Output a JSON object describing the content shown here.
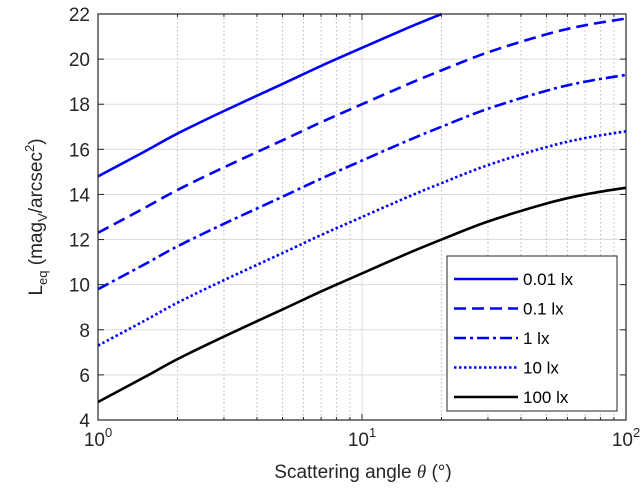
{
  "chart_data": {
    "type": "line",
    "xscale": "log",
    "xlim": [
      1,
      100
    ],
    "ylim": [
      4,
      22
    ],
    "grid": true,
    "legend_position": "bottom-right",
    "xlabel": {
      "prefix": "Scattering angle ",
      "symbol": "θ",
      "suffix": " (°)"
    },
    "ylabel": {
      "main": "L",
      "main_sub": "eq",
      "open": " (mag",
      "unit_sub": "V",
      "unit": "/arcsec",
      "unit_sup": "2",
      "close": ")"
    },
    "x_ticks": [
      {
        "value": 1,
        "base": "10",
        "exp": "0"
      },
      {
        "value": 10,
        "base": "10",
        "exp": "1"
      },
      {
        "value": 100,
        "base": "10",
        "exp": "2"
      }
    ],
    "y_ticks": [
      4,
      6,
      8,
      10,
      12,
      14,
      16,
      18,
      20,
      22
    ],
    "series": [
      {
        "name": "0.01 lx",
        "color": "#0000ff",
        "dash": "solid",
        "x": [
          1,
          1.5,
          2,
          3,
          5,
          7,
          10,
          15,
          20
        ],
        "y": [
          14.8,
          15.9,
          16.7,
          17.7,
          18.9,
          19.7,
          20.5,
          21.4,
          22.0
        ]
      },
      {
        "name": "0.1 lx",
        "color": "#0000ff",
        "dash": "dash",
        "x": [
          1,
          1.5,
          2,
          3,
          5,
          7,
          10,
          15,
          20,
          30,
          50,
          70,
          100
        ],
        "y": [
          12.3,
          13.4,
          14.2,
          15.2,
          16.4,
          17.2,
          18.0,
          18.9,
          19.5,
          20.3,
          21.1,
          21.5,
          21.8
        ]
      },
      {
        "name": "1 lx",
        "color": "#0000ff",
        "dash": "dashdot",
        "x": [
          1,
          1.5,
          2,
          3,
          5,
          7,
          10,
          15,
          20,
          30,
          50,
          70,
          100
        ],
        "y": [
          9.8,
          10.9,
          11.7,
          12.7,
          13.9,
          14.7,
          15.5,
          16.4,
          17.0,
          17.8,
          18.6,
          19.0,
          19.3
        ]
      },
      {
        "name": "10 lx",
        "color": "#0000ff",
        "dash": "dot",
        "x": [
          1,
          1.5,
          2,
          3,
          5,
          7,
          10,
          15,
          20,
          30,
          50,
          70,
          100
        ],
        "y": [
          7.3,
          8.4,
          9.2,
          10.2,
          11.4,
          12.2,
          13.0,
          13.9,
          14.5,
          15.3,
          16.1,
          16.5,
          16.8
        ]
      },
      {
        "name": "100 lx",
        "color": "#000000",
        "dash": "solid",
        "x": [
          1,
          1.5,
          2,
          3,
          5,
          7,
          10,
          15,
          20,
          30,
          50,
          70,
          100
        ],
        "y": [
          4.8,
          5.9,
          6.7,
          7.7,
          8.9,
          9.7,
          10.5,
          11.4,
          12.0,
          12.8,
          13.6,
          14.0,
          14.3
        ]
      }
    ]
  }
}
